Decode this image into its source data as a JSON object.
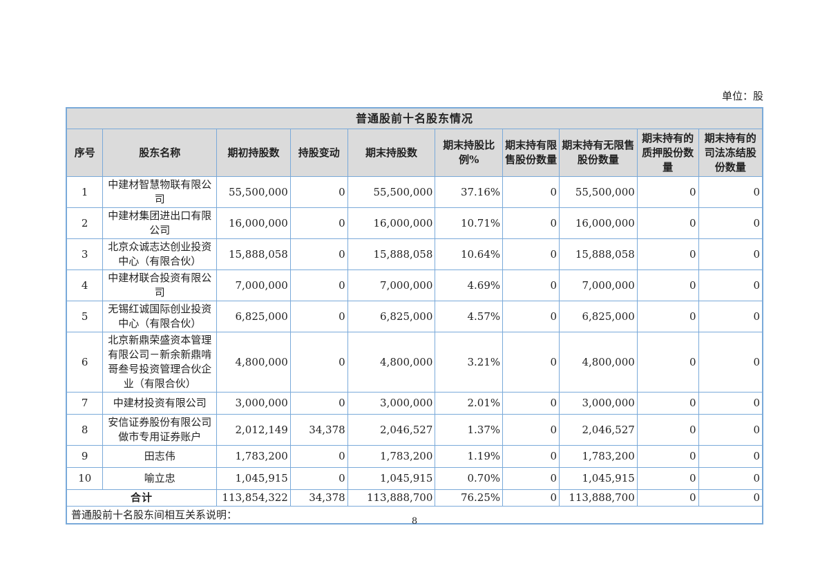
{
  "page": {
    "unit_label": "单位：股",
    "page_number": "8"
  },
  "table": {
    "title": "普通股前十名股东情况",
    "columns": [
      "序号",
      "股东名称",
      "期初持股数",
      "持股变动",
      "期末持股数",
      "期末持股比例%",
      "期末持有限售股份数量",
      "期末持有无限售股份数量",
      "期末持有的质押股份数量",
      "期末持有的司法冻结股份数量"
    ],
    "rows": [
      {
        "no": "1",
        "name": "中建材智慧物联有限公司",
        "begin": "55,500,000",
        "change": "0",
        "end": "55,500,000",
        "pct": "37.16%",
        "restricted": "0",
        "unrestricted": "55,500,000",
        "pledged": "0",
        "frozen": "0"
      },
      {
        "no": "2",
        "name": "中建材集团进出口有限公司",
        "begin": "16,000,000",
        "change": "0",
        "end": "16,000,000",
        "pct": "10.71%",
        "restricted": "0",
        "unrestricted": "16,000,000",
        "pledged": "0",
        "frozen": "0"
      },
      {
        "no": "3",
        "name": "北京众诚志达创业投资中心（有限合伙）",
        "begin": "15,888,058",
        "change": "0",
        "end": "15,888,058",
        "pct": "10.64%",
        "restricted": "0",
        "unrestricted": "15,888,058",
        "pledged": "0",
        "frozen": "0"
      },
      {
        "no": "4",
        "name": "中建材联合投资有限公司",
        "begin": "7,000,000",
        "change": "0",
        "end": "7,000,000",
        "pct": "4.69%",
        "restricted": "0",
        "unrestricted": "7,000,000",
        "pledged": "0",
        "frozen": "0"
      },
      {
        "no": "5",
        "name": "无锡红诚国际创业投资中心（有限合伙）",
        "begin": "6,825,000",
        "change": "0",
        "end": "6,825,000",
        "pct": "4.57%",
        "restricted": "0",
        "unrestricted": "6,825,000",
        "pledged": "0",
        "frozen": "0"
      },
      {
        "no": "6",
        "name": "北京新鼎荣盛资本管理有限公司－新余新鼎啃哥叁号投资管理合伙企业（有限合伙）",
        "begin": "4,800,000",
        "change": "0",
        "end": "4,800,000",
        "pct": "3.21%",
        "restricted": "0",
        "unrestricted": "4,800,000",
        "pledged": "0",
        "frozen": "0"
      },
      {
        "no": "7",
        "name": "中建材投资有限公司",
        "begin": "3,000,000",
        "change": "0",
        "end": "3,000,000",
        "pct": "2.01%",
        "restricted": "0",
        "unrestricted": "3,000,000",
        "pledged": "0",
        "frozen": "0"
      },
      {
        "no": "8",
        "name": "安信证券股份有限公司做市专用证券账户",
        "begin": "2,012,149",
        "change": "34,378",
        "end": "2,046,527",
        "pct": "1.37%",
        "restricted": "0",
        "unrestricted": "2,046,527",
        "pledged": "0",
        "frozen": "0"
      },
      {
        "no": "9",
        "name": "田志伟",
        "begin": "1,783,200",
        "change": "0",
        "end": "1,783,200",
        "pct": "1.19%",
        "restricted": "0",
        "unrestricted": "1,783,200",
        "pledged": "0",
        "frozen": "0"
      },
      {
        "no": "10",
        "name": "喻立忠",
        "begin": "1,045,915",
        "change": "0",
        "end": "1,045,915",
        "pct": "0.70%",
        "restricted": "0",
        "unrestricted": "1,045,915",
        "pledged": "0",
        "frozen": "0"
      }
    ],
    "total": {
      "label": "合计",
      "begin": "113,854,322",
      "change": "34,378",
      "end": "113,888,700",
      "pct": "76.25%",
      "restricted": "0",
      "unrestricted": "113,888,700",
      "pledged": "0",
      "frozen": "0"
    },
    "note": "普通股前十名股东间相互关系说明："
  }
}
